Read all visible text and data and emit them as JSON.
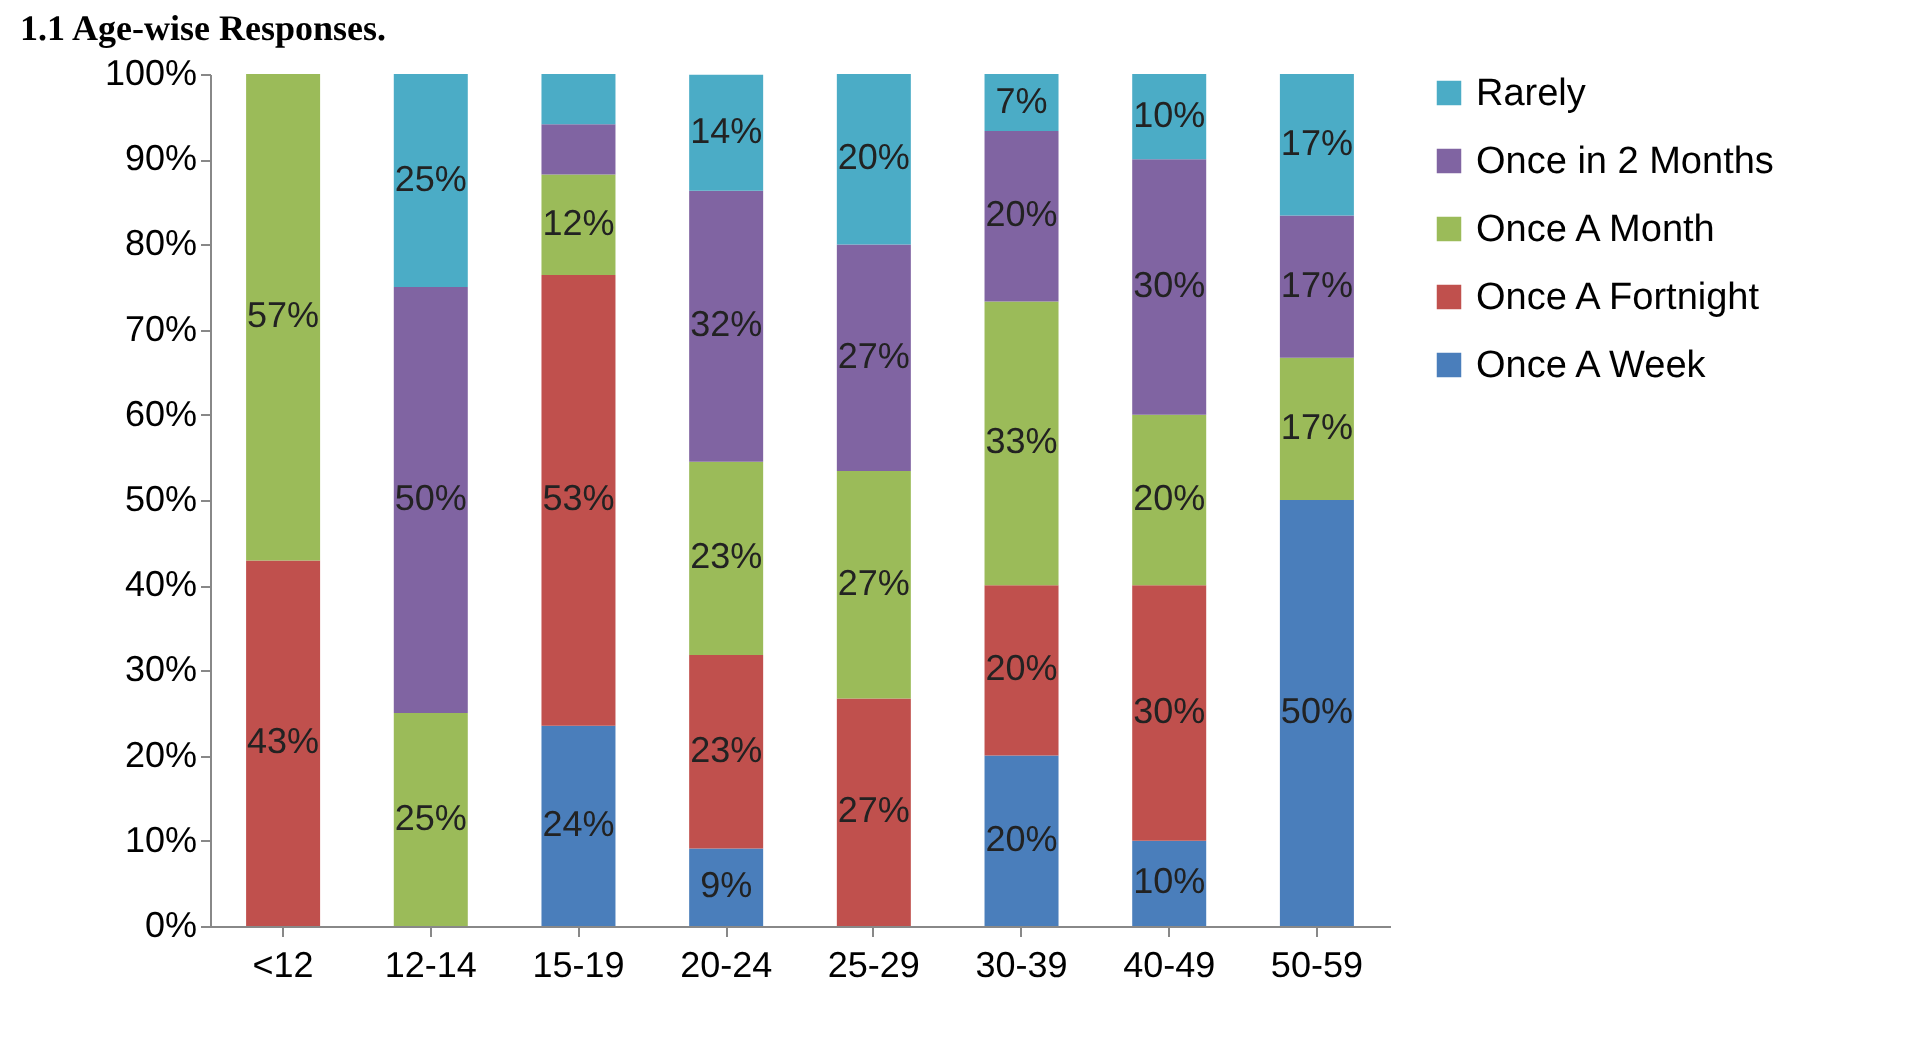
{
  "chart_data": {
    "type": "bar",
    "title": "1.1 Age-wise Responses.",
    "stacked": true,
    "legend": "right",
    "grid": false,
    "categories": [
      "<12",
      "12-14",
      "15-19",
      "20-24",
      "25-29",
      "30-39",
      "40-49",
      "50-59"
    ],
    "ylim": [
      0,
      100
    ],
    "yticks": [
      {
        "value": 0,
        "label": "0%"
      },
      {
        "value": 10,
        "label": "10%"
      },
      {
        "value": 20,
        "label": "20%"
      },
      {
        "value": 30,
        "label": "30%"
      },
      {
        "value": 40,
        "label": "40%"
      },
      {
        "value": 50,
        "label": "50%"
      },
      {
        "value": 60,
        "label": "60%"
      },
      {
        "value": 70,
        "label": "70%"
      },
      {
        "value": 80,
        "label": "80%"
      },
      {
        "value": 90,
        "label": "90%"
      },
      {
        "value": 100,
        "label": "100%"
      }
    ],
    "series": [
      {
        "name": "Once A Week",
        "color": "#4a7ebb",
        "values": [
          0,
          0,
          23.5,
          9.1,
          0,
          20,
          10,
          50
        ],
        "value_labels": [
          null,
          null,
          "24%",
          "9%",
          null,
          "20%",
          "10%",
          "50%"
        ]
      },
      {
        "name": "Once A Fortnight",
        "color": "#c0504d",
        "values": [
          42.9,
          0,
          52.9,
          22.7,
          26.7,
          20,
          30,
          0
        ],
        "value_labels": [
          "43%",
          null,
          "53%",
          "23%",
          "27%",
          "20%",
          "30%",
          null
        ]
      },
      {
        "name": "Once A Month",
        "color": "#9bbb59",
        "values": [
          57.1,
          25,
          11.8,
          22.7,
          26.7,
          33.3,
          20,
          16.7
        ],
        "value_labels": [
          "57%",
          "25%",
          "12%",
          "23%",
          "27%",
          "33%",
          "20%",
          "17%"
        ]
      },
      {
        "name": "Once in 2 Months",
        "color": "#8064a2",
        "values": [
          0,
          50,
          5.9,
          31.8,
          26.6,
          20,
          30,
          16.7
        ],
        "value_labels": [
          null,
          "50%",
          null,
          "32%",
          "27%",
          "20%",
          "30%",
          "17%"
        ]
      },
      {
        "name": "Rarely",
        "color": "#4bacc6",
        "values": [
          0,
          25,
          5.9,
          13.6,
          20,
          6.7,
          10,
          16.6
        ],
        "value_labels": [
          null,
          "25%",
          null,
          "14%",
          "20%",
          "7%",
          "10%",
          "17%"
        ]
      }
    ]
  }
}
